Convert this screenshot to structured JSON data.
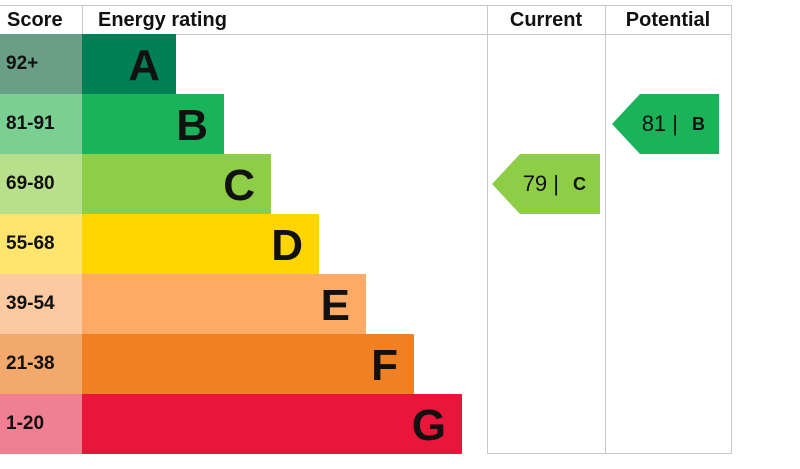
{
  "chart_data": {
    "type": "bar",
    "headers": {
      "score": "Score",
      "rating": "Energy rating",
      "current": "Current",
      "potential": "Potential"
    },
    "bands": [
      {
        "score": "92+",
        "letter": "A",
        "color": "#008054",
        "score_color": "#6a9e86"
      },
      {
        "score": "81-91",
        "letter": "B",
        "color": "#19b459",
        "score_color": "#7ccf93"
      },
      {
        "score": "69-80",
        "letter": "C",
        "color": "#8dce46",
        "score_color": "#b8e08c"
      },
      {
        "score": "55-68",
        "letter": "D",
        "color": "#ffd500",
        "score_color": "#ffe46e"
      },
      {
        "score": "39-54",
        "letter": "E",
        "color": "#fcaa65",
        "score_color": "#fcc9a0"
      },
      {
        "score": "21-38",
        "letter": "F",
        "color": "#ef8023",
        "score_color": "#f3a96c"
      },
      {
        "score": "1-20",
        "letter": "G",
        "color": "#e9153b",
        "score_color": "#f07f92"
      }
    ],
    "current": {
      "value": "79",
      "letter": "C",
      "color": "#8dce46"
    },
    "potential": {
      "value": "81",
      "letter": "B",
      "color": "#19b459"
    }
  }
}
